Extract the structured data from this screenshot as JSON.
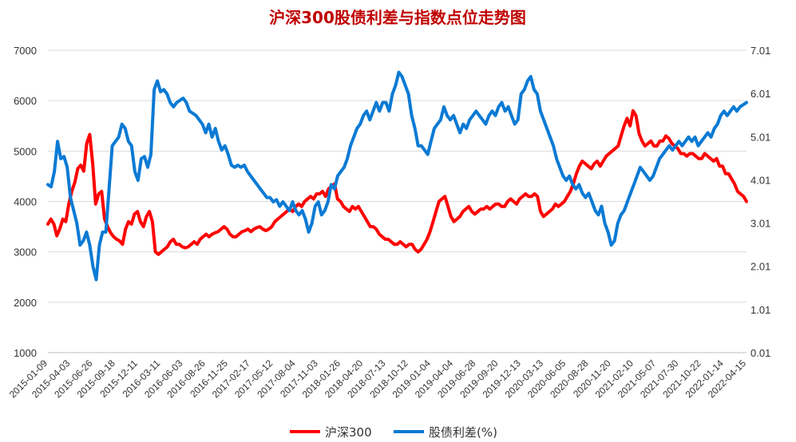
{
  "chart_data": {
    "type": "line",
    "title": "沪深300股债利差与指数点位走势图",
    "x_ticks": [
      "2015-01-09",
      "2015-04-03",
      "2015-06-26",
      "2015-09-18",
      "2015-12-11",
      "2016-03-11",
      "2016-06-03",
      "2016-08-26",
      "2016-11-25",
      "2017-02-17",
      "2017-05-12",
      "2017-08-04",
      "2017-11-03",
      "2018-01-26",
      "2018-04-20",
      "2018-07-13",
      "2018-10-12",
      "2019-01-04",
      "2019-04-04",
      "2019-06-28",
      "2019-09-20",
      "2019-12-13",
      "2020-03-13",
      "2020-06-05",
      "2020-08-28",
      "2020-11-20",
      "2021-02-10",
      "2021-05-07",
      "2021-07-30",
      "2021-10-22",
      "2022-01-14",
      "2022-04-15"
    ],
    "left_axis": {
      "ylim": [
        1000,
        7000
      ],
      "ticks": [
        "1000",
        "2000",
        "3000",
        "4000",
        "5000",
        "6000",
        "7000"
      ]
    },
    "right_axis": {
      "ylim": [
        0.01,
        7.01
      ],
      "ticks": [
        "0.01",
        "1.01",
        "2.01",
        "3.01",
        "4.01",
        "5.01",
        "6.01",
        "7.01"
      ]
    },
    "grid": true,
    "legend_position": "bottom",
    "series": [
      {
        "name": "沪深300",
        "axis": "left",
        "color": "#ff0000",
        "values": [
          3550,
          3650,
          3550,
          3320,
          3460,
          3650,
          3600,
          3950,
          4200,
          4380,
          4650,
          4720,
          4600,
          5150,
          5330,
          4750,
          3950,
          4150,
          4200,
          3650,
          3500,
          3380,
          3300,
          3250,
          3220,
          3150,
          3450,
          3600,
          3550,
          3750,
          3800,
          3600,
          3500,
          3700,
          3800,
          3600,
          3000,
          2950,
          3000,
          3050,
          3100,
          3200,
          3250,
          3150,
          3150,
          3100,
          3080,
          3100,
          3150,
          3200,
          3150,
          3250,
          3300,
          3350,
          3300,
          3350,
          3380,
          3400,
          3450,
          3500,
          3450,
          3350,
          3300,
          3300,
          3350,
          3400,
          3420,
          3450,
          3400,
          3450,
          3480,
          3500,
          3450,
          3420,
          3450,
          3500,
          3600,
          3650,
          3700,
          3750,
          3800,
          3850,
          3800,
          3900,
          3950,
          3900,
          4000,
          4050,
          4100,
          4050,
          4150,
          4150,
          4200,
          4100,
          4250,
          4300,
          4350,
          4050,
          4000,
          3900,
          3850,
          3800,
          3900,
          3850,
          3900,
          3800,
          3700,
          3600,
          3500,
          3500,
          3450,
          3350,
          3300,
          3250,
          3250,
          3200,
          3150,
          3150,
          3200,
          3150,
          3100,
          3150,
          3150,
          3050,
          3000,
          3050,
          3150,
          3250,
          3400,
          3600,
          3800,
          4000,
          4050,
          4100,
          3900,
          3700,
          3600,
          3650,
          3700,
          3800,
          3850,
          3900,
          3800,
          3750,
          3800,
          3850,
          3850,
          3900,
          3850,
          3900,
          3950,
          3950,
          3900,
          3900,
          4000,
          4050,
          4000,
          3950,
          4050,
          4100,
          4150,
          4100,
          4100,
          4150,
          4100,
          3800,
          3700,
          3750,
          3800,
          3850,
          3950,
          3900,
          3950,
          4000,
          4100,
          4200,
          4350,
          4550,
          4700,
          4800,
          4750,
          4700,
          4650,
          4750,
          4800,
          4700,
          4800,
          4900,
          4950,
          5000,
          5050,
          5100,
          5300,
          5500,
          5650,
          5500,
          5800,
          5700,
          5350,
          5200,
          5100,
          5150,
          5200,
          5100,
          5100,
          5200,
          5200,
          5300,
          5250,
          5150,
          5100,
          5050,
          4950,
          4950,
          4900,
          4950,
          4950,
          4900,
          4850,
          4850,
          4950,
          4900,
          4850,
          4800,
          4850,
          4700,
          4700,
          4550,
          4550,
          4450,
          4350,
          4200,
          4150,
          4100,
          4000
        ]
      },
      {
        "name": "股债利差(%)",
        "axis": "right",
        "color": "#0b7ad4",
        "values": [
          3.9,
          3.85,
          4.2,
          4.9,
          4.5,
          4.55,
          4.3,
          3.6,
          3.3,
          3.0,
          2.5,
          2.6,
          2.8,
          2.5,
          2.0,
          1.7,
          2.5,
          2.8,
          2.8,
          3.8,
          4.8,
          4.9,
          5.0,
          5.3,
          5.2,
          4.9,
          4.8,
          4.2,
          4.0,
          4.5,
          4.55,
          4.3,
          4.6,
          6.1,
          6.3,
          6.05,
          6.1,
          6.0,
          5.8,
          5.7,
          5.8,
          5.85,
          5.9,
          5.8,
          5.6,
          5.55,
          5.5,
          5.4,
          5.3,
          5.1,
          5.3,
          5.0,
          5.2,
          4.9,
          4.7,
          4.8,
          4.6,
          4.35,
          4.3,
          4.35,
          4.3,
          4.35,
          4.2,
          4.1,
          4.0,
          3.9,
          3.8,
          3.7,
          3.6,
          3.6,
          3.5,
          3.55,
          3.4,
          3.5,
          3.4,
          3.3,
          3.5,
          3.3,
          3.2,
          3.3,
          3.1,
          2.8,
          3.0,
          3.4,
          3.5,
          3.2,
          3.3,
          3.5,
          3.9,
          3.8,
          4.1,
          4.2,
          4.3,
          4.5,
          4.8,
          5.0,
          5.2,
          5.3,
          5.5,
          5.6,
          5.4,
          5.6,
          5.8,
          5.6,
          5.8,
          5.8,
          5.6,
          6.0,
          6.2,
          6.5,
          6.4,
          6.2,
          6.0,
          5.5,
          5.2,
          4.8,
          4.8,
          4.7,
          4.6,
          4.9,
          5.2,
          5.3,
          5.4,
          5.7,
          5.5,
          5.4,
          5.5,
          5.3,
          5.1,
          5.3,
          5.2,
          5.4,
          5.5,
          5.6,
          5.5,
          5.4,
          5.3,
          5.5,
          5.6,
          5.5,
          5.7,
          5.8,
          5.6,
          5.7,
          5.5,
          5.3,
          5.4,
          6.0,
          6.1,
          6.3,
          6.4,
          6.1,
          6.0,
          5.6,
          5.4,
          5.2,
          5.0,
          4.8,
          4.5,
          4.3,
          4.1,
          4.0,
          4.1,
          3.9,
          3.8,
          3.9,
          3.7,
          3.6,
          3.7,
          3.5,
          3.3,
          3.2,
          3.4,
          3.0,
          2.8,
          2.5,
          2.6,
          3.0,
          3.2,
          3.3,
          3.5,
          3.7,
          3.9,
          4.1,
          4.3,
          4.2,
          4.1,
          4.0,
          4.1,
          4.3,
          4.5,
          4.6,
          4.7,
          4.8,
          4.7,
          4.8,
          4.9,
          4.8,
          4.9,
          5.0,
          4.9,
          5.0,
          4.8,
          4.9,
          5.0,
          5.1,
          5.0,
          5.2,
          5.3,
          5.5,
          5.6,
          5.5,
          5.6,
          5.7,
          5.6,
          5.7,
          5.75,
          5.8
        ]
      }
    ]
  }
}
